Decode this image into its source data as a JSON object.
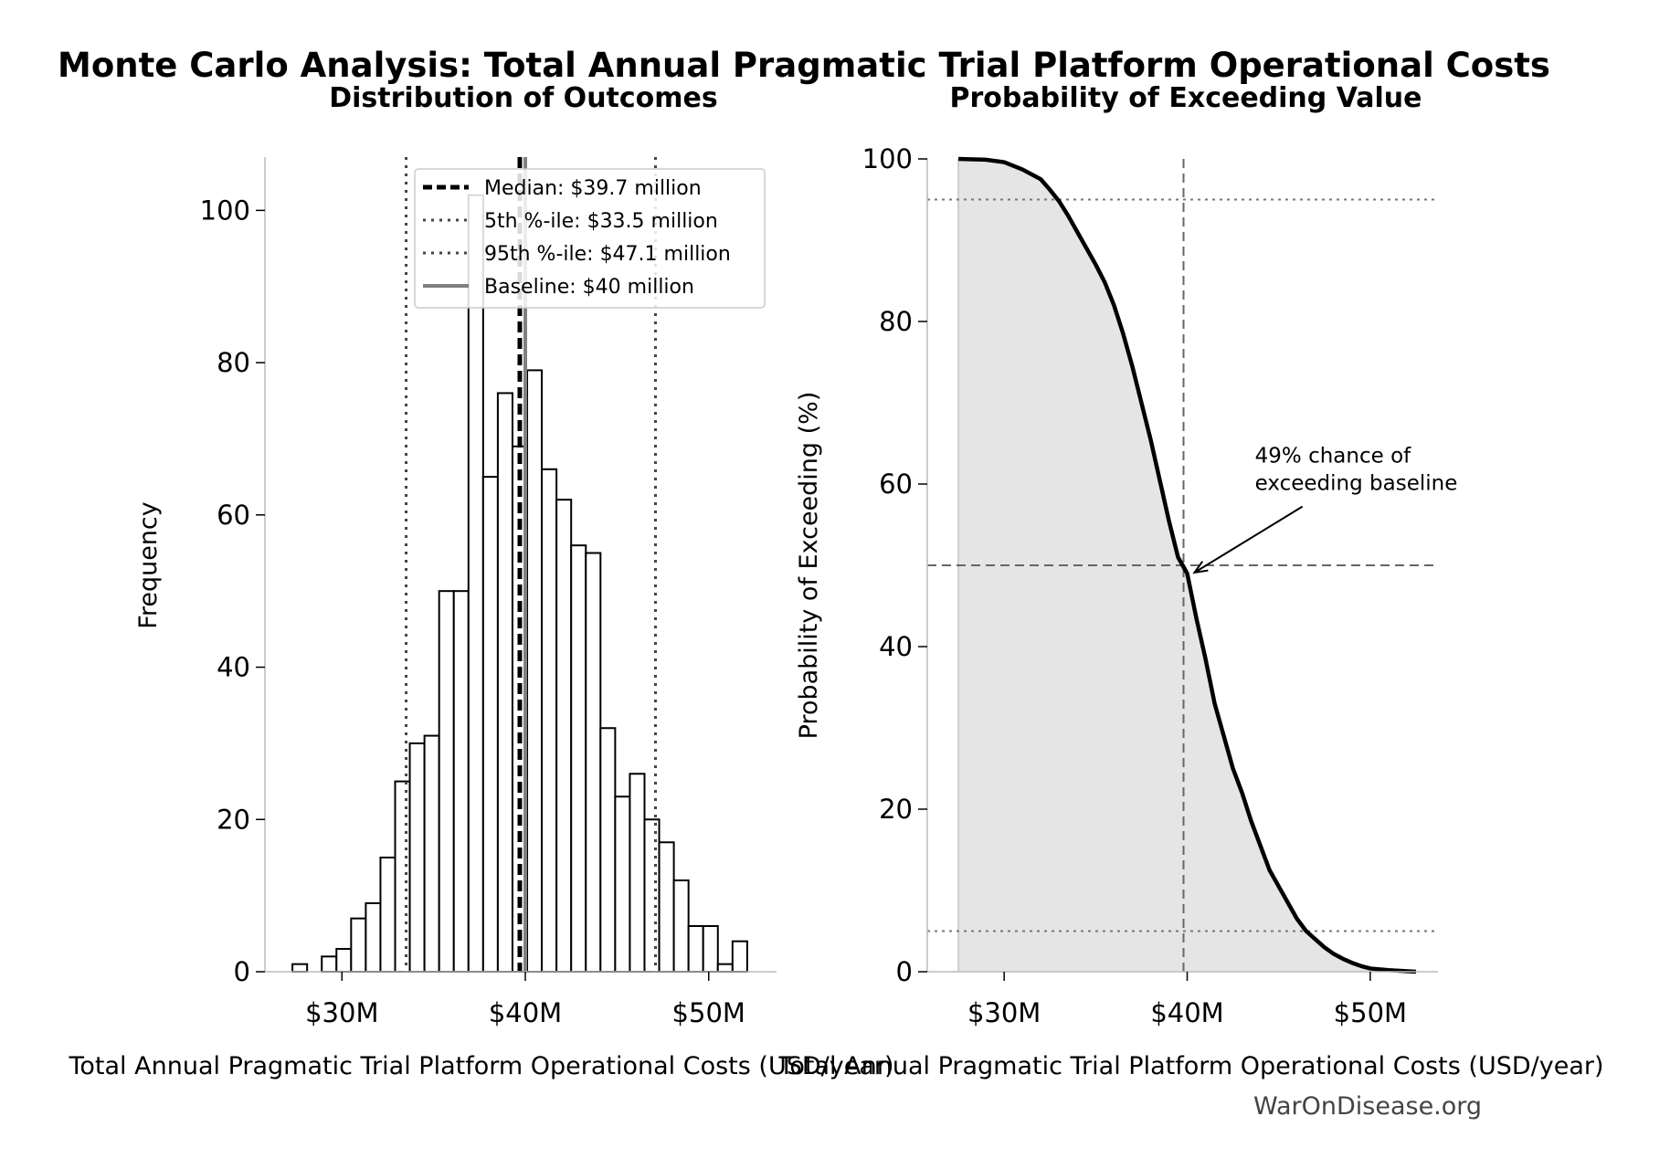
{
  "title": "Monte Carlo Analysis: Total Annual Pragmatic Trial Platform Operational Costs",
  "footer": "WarOnDisease.org",
  "chart_data": [
    {
      "type": "bar",
      "subtitle": "Distribution of Outcomes",
      "xlabel": "Total Annual Pragmatic Trial Platform Operational Costs (USD/year)",
      "ylabel": "Frequency",
      "xlim": [
        25.8,
        53.7
      ],
      "ylim": [
        0,
        107
      ],
      "xticks": [
        30,
        40,
        50
      ],
      "xtick_labels": [
        "$30M",
        "$40M",
        "$50M"
      ],
      "yticks": [
        0,
        20,
        40,
        60,
        80,
        100
      ],
      "bin_edges": [
        27.3,
        28.1,
        28.9,
        29.7,
        30.5,
        31.3,
        32.1,
        32.9,
        33.7,
        34.5,
        35.3,
        36.1,
        36.9,
        37.7,
        38.5,
        39.3,
        40.1,
        40.9,
        41.7,
        42.5,
        43.3,
        44.1,
        44.9,
        45.7,
        46.5,
        47.3,
        48.1,
        48.9,
        49.7,
        50.5,
        51.3,
        52.1,
        52.9
      ],
      "counts": [
        1,
        0,
        2,
        3,
        7,
        9,
        15,
        25,
        30,
        31,
        50,
        50,
        102,
        65,
        76,
        69,
        79,
        66,
        62,
        56,
        55,
        32,
        23,
        26,
        20,
        17,
        12,
        6,
        6,
        1,
        4,
        0
      ],
      "reference_lines": [
        {
          "label": "Median: $39.7 million",
          "value": 39.7,
          "style": "dashed",
          "color": "#000000"
        },
        {
          "label": "5th %-ile: $33.5 million",
          "value": 33.5,
          "style": "dotted",
          "color": "#444444"
        },
        {
          "label": "95th %-ile: $47.1 million",
          "value": 47.1,
          "style": "dotted",
          "color": "#444444"
        },
        {
          "label": "Baseline: $40 million",
          "value": 40.0,
          "style": "solid",
          "color": "#808080"
        }
      ],
      "legend_position": "top-right",
      "grid": false
    },
    {
      "type": "area",
      "subtitle": "Probability of Exceeding Value",
      "xlabel": "Total Annual Pragmatic Trial Platform Operational Costs (USD/year)",
      "ylabel": "Probability of Exceeding (%)",
      "xlim": [
        25.8,
        53.7
      ],
      "ylim": [
        0,
        100
      ],
      "xticks": [
        30,
        40,
        50
      ],
      "xtick_labels": [
        "$30M",
        "$40M",
        "$50M"
      ],
      "yticks": [
        0,
        20,
        40,
        60,
        80,
        100
      ],
      "x": [
        27.5,
        29.0,
        30.0,
        31.0,
        32.0,
        32.5,
        33.0,
        33.5,
        34.0,
        34.5,
        35.0,
        35.5,
        36.0,
        36.5,
        37.0,
        37.5,
        38.0,
        38.5,
        39.0,
        39.5,
        40.0,
        40.5,
        41.0,
        41.5,
        42.0,
        42.5,
        43.0,
        43.5,
        44.0,
        44.5,
        45.0,
        45.5,
        46.0,
        46.5,
        47.0,
        47.5,
        48.0,
        48.5,
        49.0,
        49.5,
        50.0,
        51.0,
        52.5
      ],
      "y": [
        100,
        99.9,
        99.6,
        98.7,
        97.5,
        96.2,
        94.8,
        93.0,
        91.0,
        89.0,
        87.0,
        84.8,
        82.0,
        78.5,
        74.5,
        70.0,
        65.5,
        60.5,
        55.5,
        51.0,
        49.0,
        43.5,
        38.5,
        33.0,
        29.0,
        25.0,
        22.0,
        18.5,
        15.5,
        12.5,
        10.5,
        8.5,
        6.5,
        5.0,
        4.0,
        3.0,
        2.2,
        1.6,
        1.1,
        0.7,
        0.4,
        0.2,
        0.0
      ],
      "reference_lines": [
        {
          "orientation": "vertical",
          "value": 39.8,
          "style": "dashed",
          "color": "#666666"
        },
        {
          "orientation": "horizontal",
          "value": 50,
          "style": "dashed",
          "color": "#666666"
        },
        {
          "orientation": "horizontal",
          "value": 95,
          "style": "dotted",
          "color": "#777777"
        },
        {
          "orientation": "horizontal",
          "value": 5,
          "style": "dotted",
          "color": "#777777"
        }
      ],
      "annotation": {
        "lines": [
          "49% chance of",
          "exceeding baseline"
        ],
        "point_x": 40.0,
        "point_y": 49.0,
        "text_x": 43.7,
        "text_y": 61.5
      },
      "fill_color": "#e5e5e5",
      "grid": false
    }
  ]
}
